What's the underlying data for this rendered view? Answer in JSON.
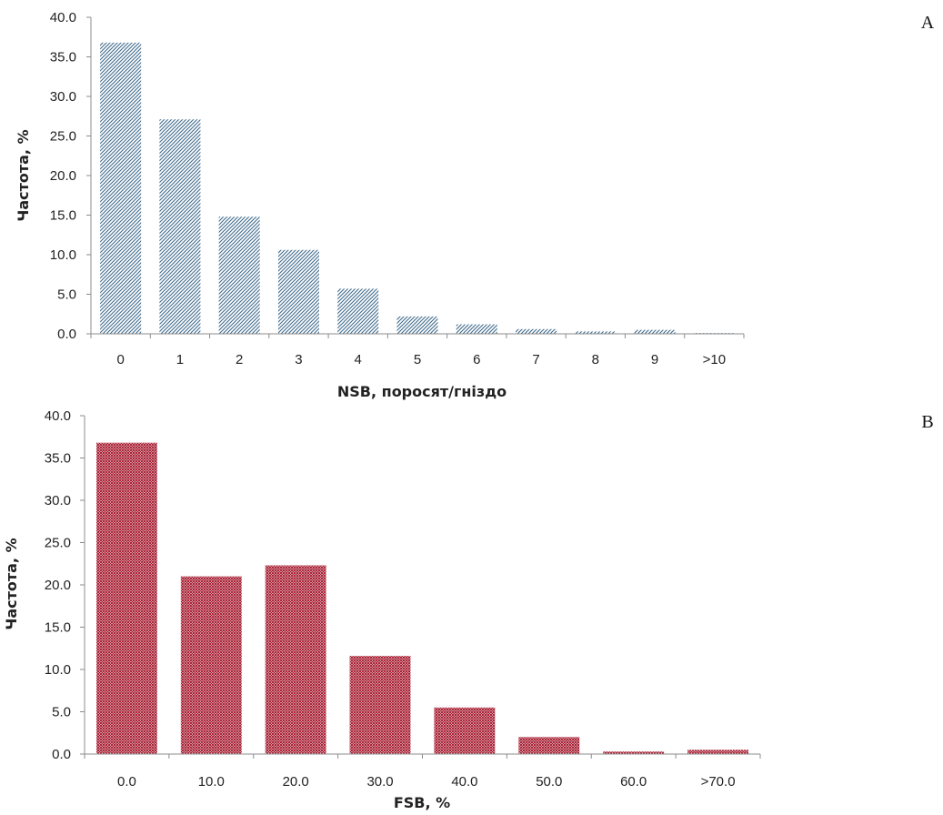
{
  "colors": {
    "panel_a_bars": "#3f6b8c",
    "panel_b_bars": "#a3152b",
    "axis": "#8c8c8c"
  },
  "chart_data": [
    {
      "type": "bar",
      "panel_label": "A",
      "categories": [
        "0",
        "1",
        "2",
        "3",
        "4",
        "5",
        "6",
        "7",
        "8",
        "9",
        ">10"
      ],
      "values": [
        36.8,
        27.1,
        14.8,
        10.6,
        5.7,
        2.2,
        1.2,
        0.6,
        0.3,
        0.5,
        0.1
      ],
      "xlabel": "NSB, поросят/гніздо",
      "ylabel": "Частота, %",
      "ylim": [
        0,
        40
      ],
      "yticks": [
        "0.0",
        "5.0",
        "10.0",
        "15.0",
        "20.0",
        "25.0",
        "30.0",
        "35.0",
        "40.0"
      ],
      "grid": false,
      "bar_fill": "diagonal hatch"
    },
    {
      "type": "bar",
      "panel_label": "B",
      "categories": [
        "0.0",
        "10.0",
        "20.0",
        "30.0",
        "40.0",
        "50.0",
        "60.0",
        ">70.0"
      ],
      "values": [
        36.8,
        21.0,
        22.3,
        11.6,
        5.5,
        2.0,
        0.3,
        0.5
      ],
      "xlabel": "FSB, %",
      "ylabel": "Частота, %",
      "ylim": [
        0,
        40
      ],
      "yticks": [
        "0.0",
        "5.0",
        "10.0",
        "15.0",
        "20.0",
        "25.0",
        "30.0",
        "35.0",
        "40.0"
      ],
      "grid": false,
      "bar_fill": "cross-hatch"
    }
  ]
}
